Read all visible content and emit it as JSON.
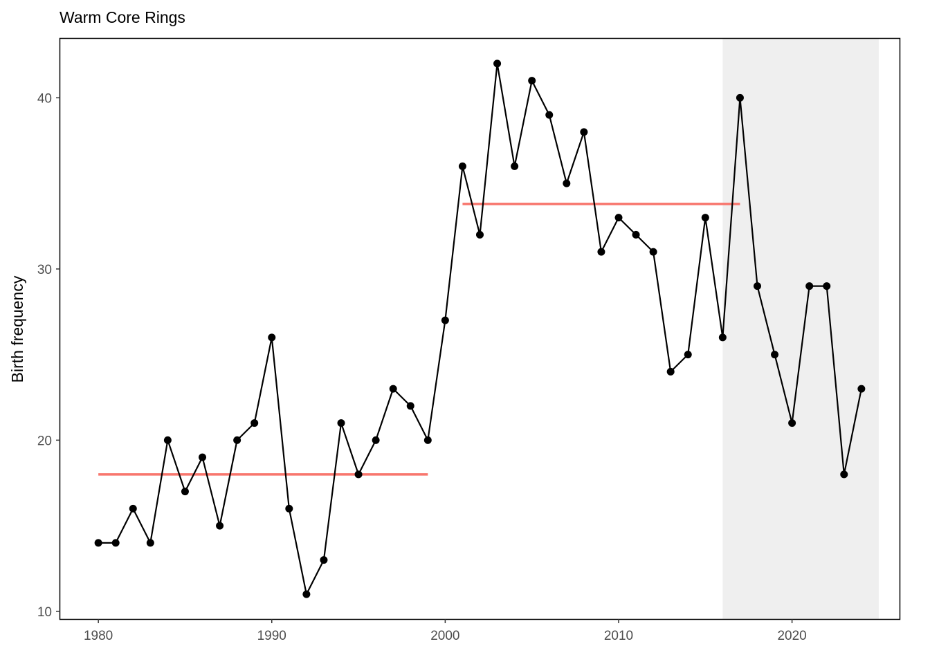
{
  "chart_data": {
    "type": "line",
    "title": "Warm Core Rings",
    "xlabel": "",
    "ylabel": "Birth frequency",
    "xlim": [
      1977.8,
      2026.2
    ],
    "ylim": [
      9.55,
      43.45
    ],
    "x_ticks": [
      1980,
      1990,
      2000,
      2010,
      2020
    ],
    "y_ticks": [
      10,
      20,
      30,
      40
    ],
    "grid": false,
    "legend": "none",
    "colors": {
      "series": "#000000",
      "mean_lines": "#F8766D",
      "shaded_region": "#EFEFEF",
      "panel_border": "#000000",
      "tick_label": "#4d4d4d"
    },
    "shaded_region": {
      "x_start": 2016,
      "x_end": 2025
    },
    "series": [
      {
        "x": [
          1980,
          1981,
          1982,
          1983,
          1984,
          1985,
          1986,
          1987,
          1988,
          1989,
          1990,
          1991,
          1992,
          1993,
          1994,
          1995,
          1996,
          1997,
          1998,
          1999,
          2000,
          2001,
          2002,
          2003,
          2004,
          2005,
          2006,
          2007,
          2008,
          2009,
          2010,
          2011,
          2012,
          2013,
          2014,
          2015,
          2016,
          2017,
          2018,
          2019,
          2020,
          2021,
          2022,
          2023,
          2024
        ],
        "values": [
          14,
          14,
          16,
          14,
          20,
          17,
          19,
          15,
          20,
          21,
          26,
          16,
          11,
          13,
          21,
          18,
          20,
          23,
          22,
          20,
          27,
          36,
          32,
          42,
          36,
          41,
          39,
          35,
          38,
          31,
          33,
          32,
          31,
          24,
          25,
          33,
          26,
          40,
          29,
          25,
          21,
          29,
          29,
          18,
          23
        ]
      }
    ],
    "mean_segments": [
      {
        "x_start": 1980,
        "x_end": 1999,
        "value": 18.0
      },
      {
        "x_start": 2001,
        "x_end": 2017,
        "value": 33.8
      }
    ]
  }
}
